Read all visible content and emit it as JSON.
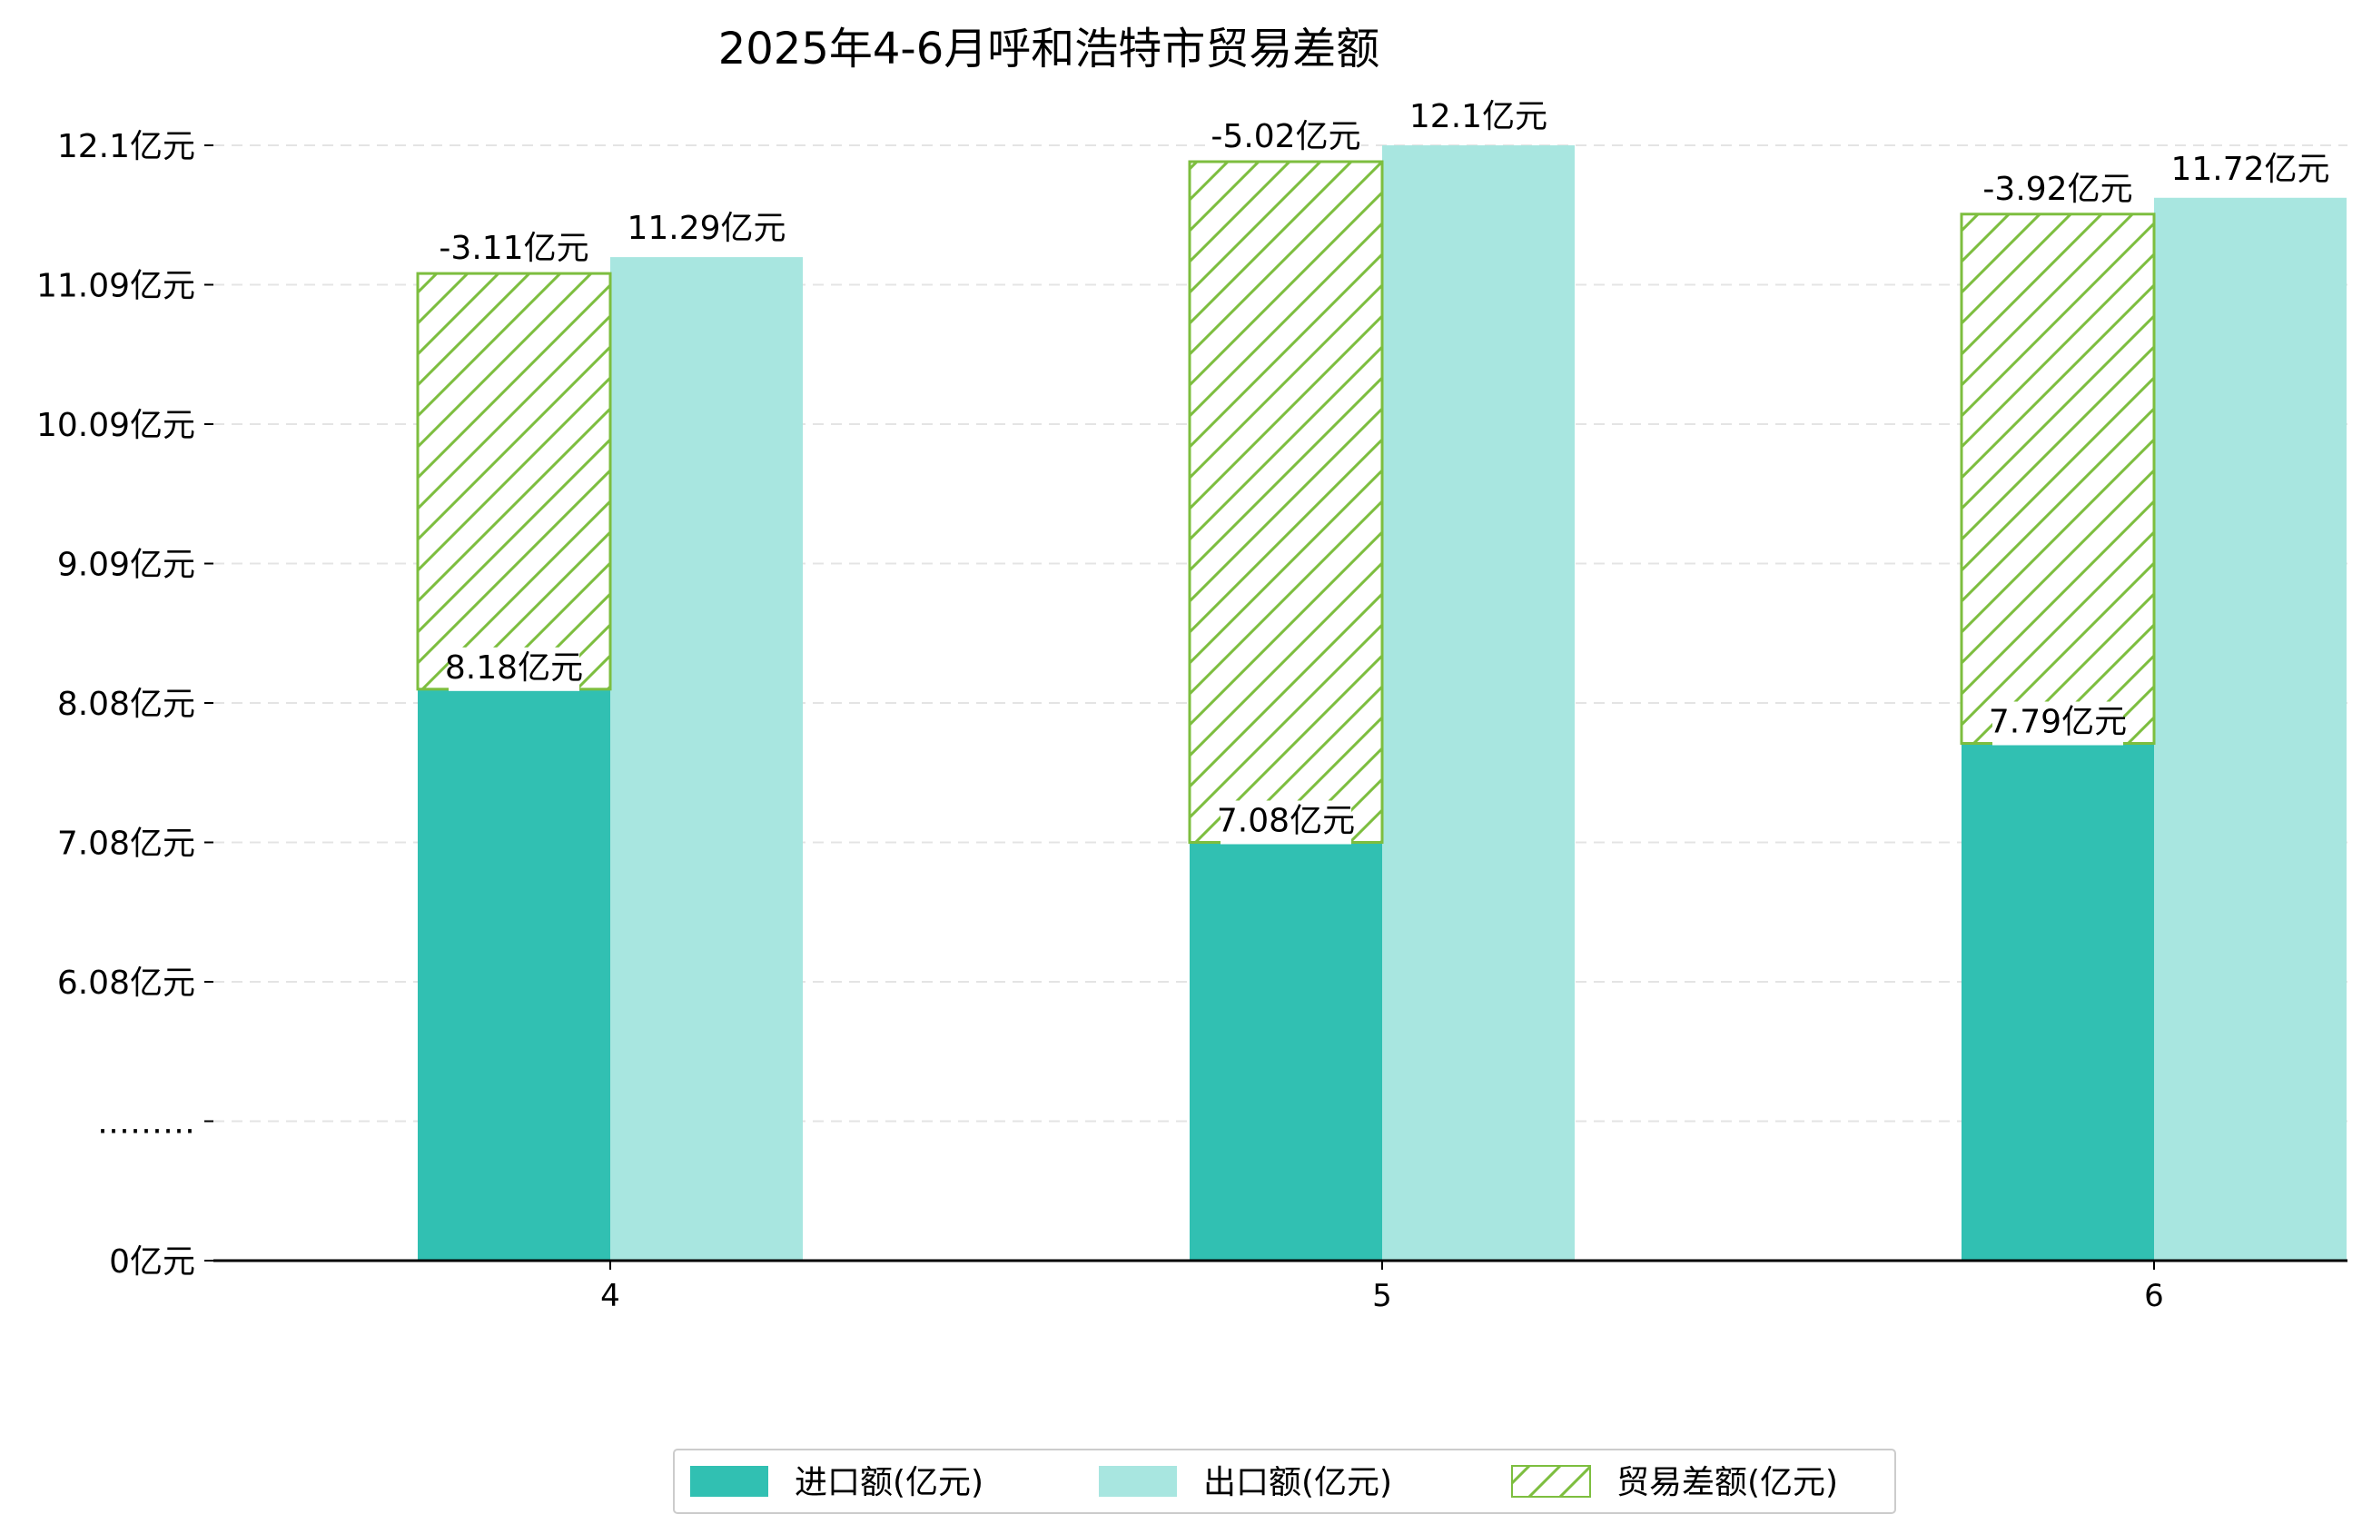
{
  "chart_data": {
    "type": "bar",
    "title": "2025年4-6月呼和浩特市贸易差额",
    "categories": [
      "4",
      "5",
      "6"
    ],
    "series": [
      {
        "name": "进口额(亿元)",
        "values": [
          8.18,
          7.08,
          7.79
        ],
        "labels": [
          "8.18亿元",
          "7.08亿元",
          "7.79亿元"
        ],
        "color": "#31C0B2"
      },
      {
        "name": "出口额(亿元)",
        "values": [
          11.29,
          12.1,
          11.72
        ],
        "labels": [
          "11.29亿元",
          "12.1亿元",
          "11.72亿元"
        ],
        "color": "#A8E6E0"
      },
      {
        "name": "贸易差额(亿元)",
        "values": [
          -3.11,
          -5.02,
          -3.92
        ],
        "labels": [
          "-3.11亿元",
          "-5.02亿元",
          "-3.92亿元"
        ],
        "color": "#7DBE3F",
        "pattern": "hatched"
      }
    ],
    "y_axis": {
      "ticks": [
        {
          "label": "0亿元",
          "value": 0
        },
        {
          "label": "………",
          "value": 1
        },
        {
          "label": "6.08亿元",
          "value": 2
        },
        {
          "label": "7.08亿元",
          "value": 3
        },
        {
          "label": "8.08亿元",
          "value": 4
        },
        {
          "label": "9.09亿元",
          "value": 5
        },
        {
          "label": "10.09亿元",
          "value": 6
        },
        {
          "label": "11.09亿元",
          "value": 7
        },
        {
          "label": "12.1亿元",
          "value": 8
        }
      ],
      "note": "broken axis: 0 to 5.08 compressed into first interval"
    },
    "grid": "horizontal dashed",
    "legend": "bottom-center"
  }
}
